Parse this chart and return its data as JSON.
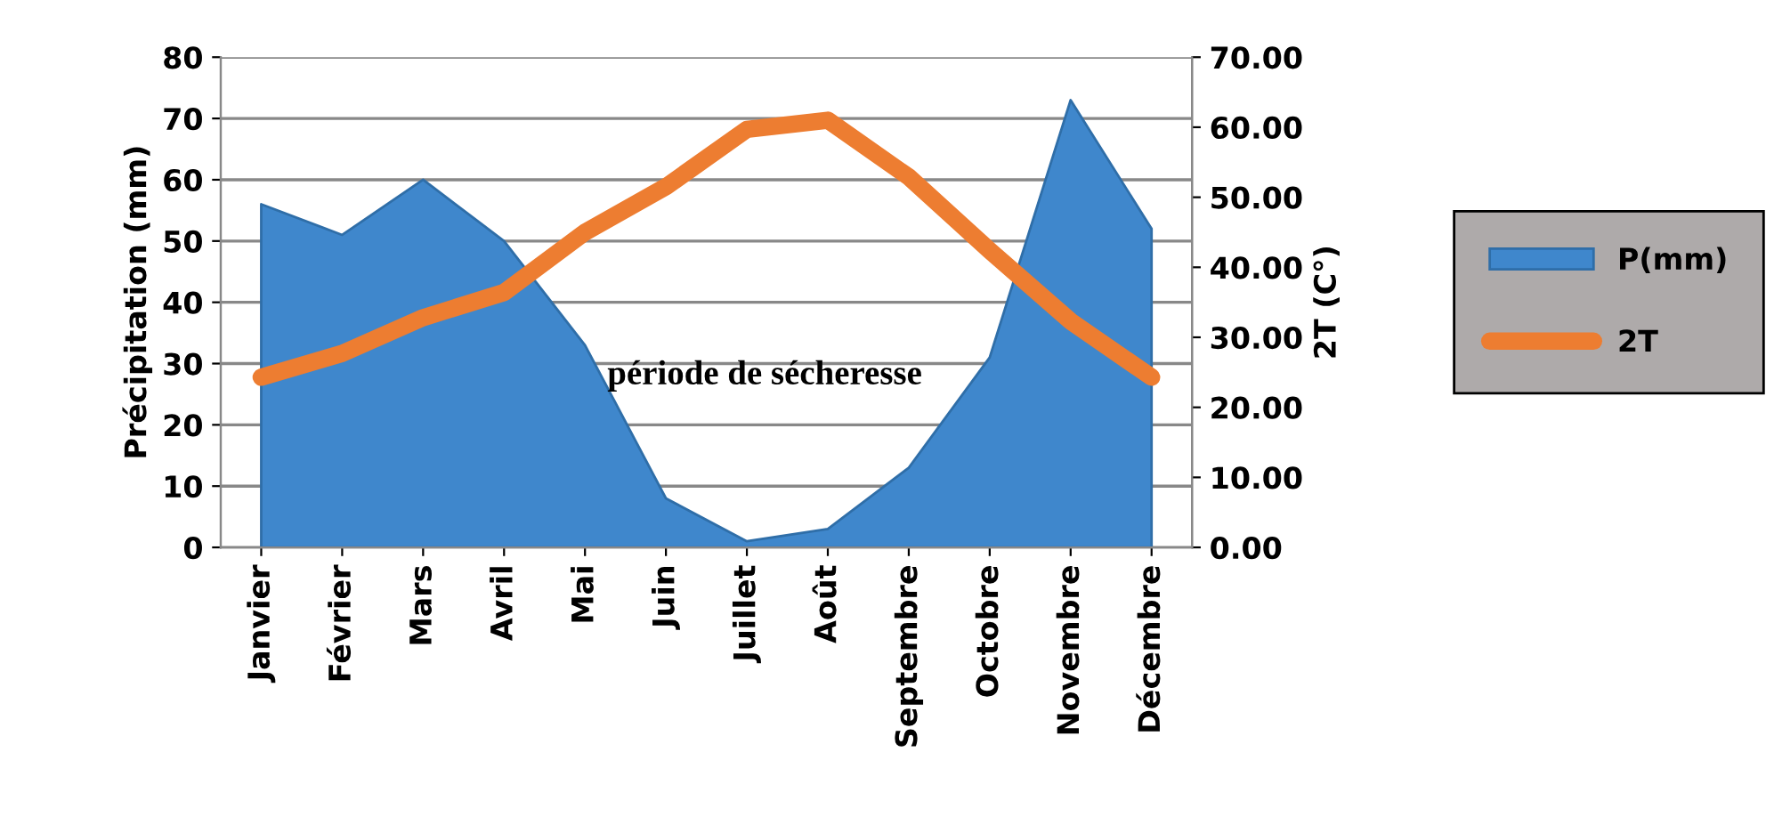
{
  "chart_data": {
    "type": "area",
    "categories": [
      "Janvier",
      "Février",
      "Mars",
      "Avril",
      "Mai",
      "Juin",
      "Juillet",
      "Août",
      "Septembre",
      "Octobre",
      "Novembre",
      "Décembre"
    ],
    "ylabel": "Précipitation (mm)",
    "y2label": "2T (C°)",
    "ylim": [
      0,
      80
    ],
    "yticks": [
      0,
      10,
      20,
      30,
      40,
      50,
      60,
      70,
      80
    ],
    "y2lim": [
      0,
      70
    ],
    "y2ticks": [
      {
        "value": 0,
        "label": "0.00"
      },
      {
        "value": 10,
        "label": "10.00"
      },
      {
        "value": 20,
        "label": "20.00"
      },
      {
        "value": 30,
        "label": "30.00"
      },
      {
        "value": 40,
        "label": "40.00"
      },
      {
        "value": 50,
        "label": "50.00"
      },
      {
        "value": 60,
        "label": "60.00"
      },
      {
        "value": 70,
        "label": "70.00"
      }
    ],
    "grid": "y",
    "legend": "right",
    "annotations": [
      "période de sécheresse"
    ],
    "series": [
      {
        "name": "P(mm)",
        "color": "#3f87cc",
        "values": [
          56,
          51,
          60,
          50,
          33,
          8,
          1,
          3,
          13,
          31,
          73,
          52
        ]
      },
      {
        "name": "2T",
        "type": "line",
        "axis": "y2",
        "color": "#ed7d31",
        "values": [
          24.3,
          27.7,
          32.8,
          36.4,
          45,
          51.5,
          59.7,
          61,
          52.9,
          42.4,
          32.3,
          24.3
        ]
      }
    ]
  }
}
